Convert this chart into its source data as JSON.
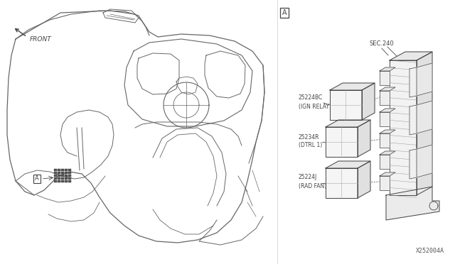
{
  "bg_color": "#ffffff",
  "line_color": "#666666",
  "dark_line": "#444444",
  "fig_width": 6.4,
  "fig_height": 3.72,
  "dpi": 100,
  "front_label": "FRONT",
  "part_number": "X252004A",
  "sec240_label": "SEC.240",
  "relay1_code": "25224BC",
  "relay1_name": "(IGN RELAY)",
  "relay2_code": "25234R",
  "relay2_name": "(DTRL 1)",
  "relay3_code": "25224J",
  "relay3_name": "(RAD FAN)"
}
